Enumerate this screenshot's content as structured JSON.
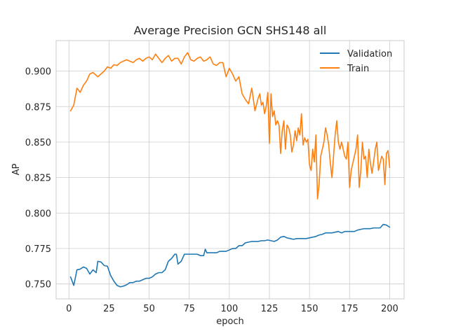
{
  "chart_data": {
    "type": "line",
    "title": "Average Precision GCN SHS148 all",
    "xlabel": "epoch",
    "ylabel": "AP",
    "xlim": [
      -8,
      209
    ],
    "ylim": [
      0.7395,
      0.9215
    ],
    "xticks": [
      0,
      25,
      50,
      75,
      100,
      125,
      150,
      175,
      200
    ],
    "yticks": [
      0.75,
      0.775,
      0.8,
      0.825,
      0.85,
      0.875,
      0.9
    ],
    "ytick_labels": [
      "0.750",
      "0.775",
      "0.800",
      "0.825",
      "0.850",
      "0.875",
      "0.900"
    ],
    "grid": true,
    "legend": "top-right",
    "series": [
      {
        "name": "Validation",
        "color": "#1f77b4",
        "x": [
          1,
          3,
          5,
          7,
          9,
          11,
          13,
          15,
          17,
          18,
          20,
          22,
          24,
          26,
          28,
          30,
          32,
          34,
          36,
          38,
          40,
          42,
          44,
          46,
          48,
          50,
          52,
          54,
          56,
          58,
          60,
          62,
          64,
          66,
          67,
          68,
          70,
          72,
          74,
          76,
          78,
          80,
          82,
          84,
          85,
          86,
          88,
          90,
          92,
          94,
          96,
          98,
          100,
          102,
          104,
          106,
          108,
          110,
          112,
          114,
          116,
          118,
          120,
          122,
          124,
          126,
          128,
          130,
          132,
          134,
          136,
          138,
          140,
          142,
          144,
          146,
          148,
          150,
          152,
          154,
          156,
          158,
          160,
          162,
          164,
          166,
          168,
          170,
          172,
          174,
          176,
          178,
          180,
          182,
          184,
          186,
          188,
          190,
          192,
          194,
          196,
          198,
          200
        ],
        "y": [
          0.755,
          0.749,
          0.76,
          0.7605,
          0.762,
          0.761,
          0.757,
          0.76,
          0.758,
          0.766,
          0.7655,
          0.763,
          0.7625,
          0.756,
          0.752,
          0.749,
          0.748,
          0.7485,
          0.7495,
          0.751,
          0.751,
          0.752,
          0.752,
          0.753,
          0.754,
          0.754,
          0.755,
          0.757,
          0.758,
          0.758,
          0.76,
          0.766,
          0.768,
          0.771,
          0.771,
          0.764,
          0.766,
          0.771,
          0.771,
          0.771,
          0.771,
          0.771,
          0.77,
          0.77,
          0.7745,
          0.772,
          0.772,
          0.772,
          0.772,
          0.773,
          0.773,
          0.773,
          0.774,
          0.775,
          0.775,
          0.777,
          0.777,
          0.779,
          0.7795,
          0.78,
          0.78,
          0.78,
          0.7805,
          0.7805,
          0.781,
          0.7805,
          0.78,
          0.781,
          0.783,
          0.7835,
          0.7825,
          0.782,
          0.7815,
          0.782,
          0.782,
          0.782,
          0.782,
          0.7825,
          0.783,
          0.7835,
          0.7845,
          0.785,
          0.786,
          0.786,
          0.786,
          0.7865,
          0.787,
          0.786,
          0.787,
          0.787,
          0.787,
          0.787,
          0.788,
          0.7885,
          0.789,
          0.789,
          0.789,
          0.7895,
          0.7895,
          0.7895,
          0.792,
          0.7915,
          0.79
        ]
      },
      {
        "name": "Train",
        "color": "#ff7f0e",
        "x": [
          1,
          3,
          5,
          7,
          9,
          11,
          13,
          15,
          17,
          18,
          20,
          22,
          24,
          26,
          28,
          30,
          32,
          34,
          36,
          38,
          40,
          42,
          44,
          46,
          48,
          50,
          52,
          54,
          56,
          58,
          60,
          62,
          64,
          66,
          68,
          70,
          72,
          74,
          76,
          78,
          80,
          82,
          84,
          86,
          88,
          90,
          92,
          94,
          96,
          98,
          100,
          102,
          104,
          106,
          108,
          110,
          112,
          114,
          116,
          118,
          119,
          120,
          121,
          122,
          123,
          124,
          125,
          126,
          127,
          128,
          129,
          130,
          131,
          132,
          133,
          134,
          135,
          136,
          137,
          138,
          139,
          140,
          141,
          142,
          143,
          144,
          145,
          146,
          147,
          148,
          149,
          150,
          151,
          152,
          153,
          154,
          155,
          156,
          157,
          158,
          159,
          160,
          161,
          162,
          163,
          164,
          165,
          166,
          167,
          168,
          169,
          170,
          171,
          172,
          173,
          174,
          175,
          176,
          177,
          178,
          179,
          180,
          181,
          182,
          183,
          184,
          185,
          186,
          187,
          188,
          189,
          190,
          191,
          192,
          193,
          194,
          195,
          196,
          197,
          198,
          199,
          200
        ],
        "y": [
          0.872,
          0.876,
          0.888,
          0.885,
          0.89,
          0.893,
          0.898,
          0.899,
          0.897,
          0.896,
          0.898,
          0.9,
          0.903,
          0.902,
          0.9045,
          0.904,
          0.906,
          0.907,
          0.908,
          0.907,
          0.906,
          0.908,
          0.909,
          0.907,
          0.909,
          0.91,
          0.908,
          0.912,
          0.909,
          0.906,
          0.909,
          0.911,
          0.907,
          0.909,
          0.909,
          0.905,
          0.91,
          0.913,
          0.908,
          0.907,
          0.909,
          0.91,
          0.907,
          0.908,
          0.91,
          0.905,
          0.904,
          0.906,
          0.906,
          0.896,
          0.902,
          0.898,
          0.893,
          0.896,
          0.884,
          0.88,
          0.877,
          0.888,
          0.872,
          0.881,
          0.884,
          0.876,
          0.878,
          0.87,
          0.875,
          0.885,
          0.849,
          0.884,
          0.868,
          0.872,
          0.862,
          0.865,
          0.862,
          0.842,
          0.858,
          0.865,
          0.845,
          0.862,
          0.86,
          0.855,
          0.843,
          0.848,
          0.858,
          0.851,
          0.86,
          0.855,
          0.87,
          0.848,
          0.853,
          0.85,
          0.852,
          0.834,
          0.83,
          0.845,
          0.836,
          0.855,
          0.81,
          0.82,
          0.84,
          0.845,
          0.85,
          0.86,
          0.855,
          0.848,
          0.835,
          0.825,
          0.84,
          0.855,
          0.865,
          0.85,
          0.845,
          0.85,
          0.845,
          0.84,
          0.838,
          0.85,
          0.818,
          0.83,
          0.835,
          0.84,
          0.845,
          0.855,
          0.818,
          0.83,
          0.85,
          0.838,
          0.84,
          0.825,
          0.845,
          0.835,
          0.828,
          0.836,
          0.845,
          0.85,
          0.83,
          0.835,
          0.84,
          0.838,
          0.82,
          0.842,
          0.844,
          0.832
        ]
      }
    ]
  }
}
